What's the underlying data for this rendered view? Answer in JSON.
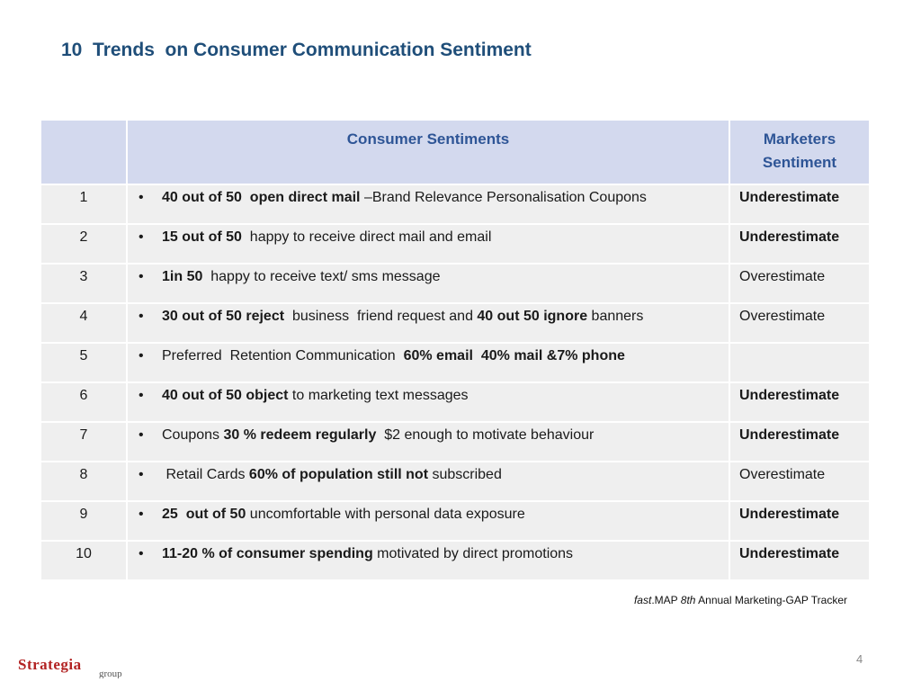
{
  "title": "10  Trends  on Consumer Communication Sentiment",
  "table": {
    "headers": [
      "",
      "Consumer Sentiments",
      "Marketers Sentiment"
    ],
    "rows": [
      {
        "num": "1",
        "parts": [
          {
            "t": "40 out of 50  open direct mail ",
            "b": true
          },
          {
            "t": "–Brand Relevance Personalisation Coupons",
            "b": false
          }
        ],
        "marketer": "Underestimate",
        "marketer_style": "red"
      },
      {
        "num": "2",
        "parts": [
          {
            "t": "15 out of 50 ",
            "b": true
          },
          {
            "t": " happy to receive direct mail and email",
            "b": false
          }
        ],
        "marketer": "Underestimate",
        "marketer_style": "red"
      },
      {
        "num": "3",
        "parts": [
          {
            "t": "1in 50 ",
            "b": true
          },
          {
            "t": " happy to receive text/ sms message",
            "b": false
          }
        ],
        "marketer": "Overestimate",
        "marketer_style": "black"
      },
      {
        "num": "4",
        "parts": [
          {
            "t": "30 out of 50 reject ",
            "b": true
          },
          {
            "t": " business  friend request and ",
            "b": false
          },
          {
            "t": "40 out 50 ignore",
            "b": true
          },
          {
            "t": " banners",
            "b": false
          }
        ],
        "marketer": "Overestimate",
        "marketer_style": "black"
      },
      {
        "num": "5",
        "parts": [
          {
            "t": "Preferred  Retention Communication  ",
            "b": false
          },
          {
            "t": "60% email  40% mail &7% phone",
            "b": true
          }
        ],
        "marketer": "",
        "marketer_style": "black"
      },
      {
        "num": "6",
        "parts": [
          {
            "t": "40 out of 50 object",
            "b": true
          },
          {
            "t": " to marketing text messages",
            "b": false
          }
        ],
        "marketer": "Underestimate",
        "marketer_style": "red"
      },
      {
        "num": "7",
        "parts": [
          {
            "t": "Coupons ",
            "b": false
          },
          {
            "t": "30 % redeem regularly ",
            "b": true
          },
          {
            "t": " $2 enough to motivate behaviour",
            "b": false
          }
        ],
        "marketer": "Underestimate",
        "marketer_style": "red"
      },
      {
        "num": "8",
        "parts": [
          {
            "t": " Retail Cards ",
            "b": false
          },
          {
            "t": "60% of population still not",
            "b": true
          },
          {
            "t": " subscribed",
            "b": false
          }
        ],
        "marketer": "Overestimate",
        "marketer_style": "black"
      },
      {
        "num": "9",
        "parts": [
          {
            "t": "25  out of 50",
            "b": true
          },
          {
            "t": " uncomfortable with personal data exposure",
            "b": false
          }
        ],
        "marketer": "Underestimate",
        "marketer_style": "red"
      },
      {
        "num": "10",
        "parts": [
          {
            "t": "11-20 % of consumer spending",
            "b": true
          },
          {
            "t": " motivated by direct promotions",
            "b": false
          }
        ],
        "marketer": "Underestimate",
        "marketer_style": "red"
      }
    ]
  },
  "bullet": "•",
  "source": {
    "italic_1": "fast",
    "text_1": ".MAP ",
    "italic_2": "8th",
    "text_2": " Annual Marketing-GAP Tracker"
  },
  "page_number": "4",
  "logo": {
    "word": "Strategia",
    "sub": "group",
    "colors": {
      "word": "#B22222",
      "sub": "#555555"
    }
  }
}
